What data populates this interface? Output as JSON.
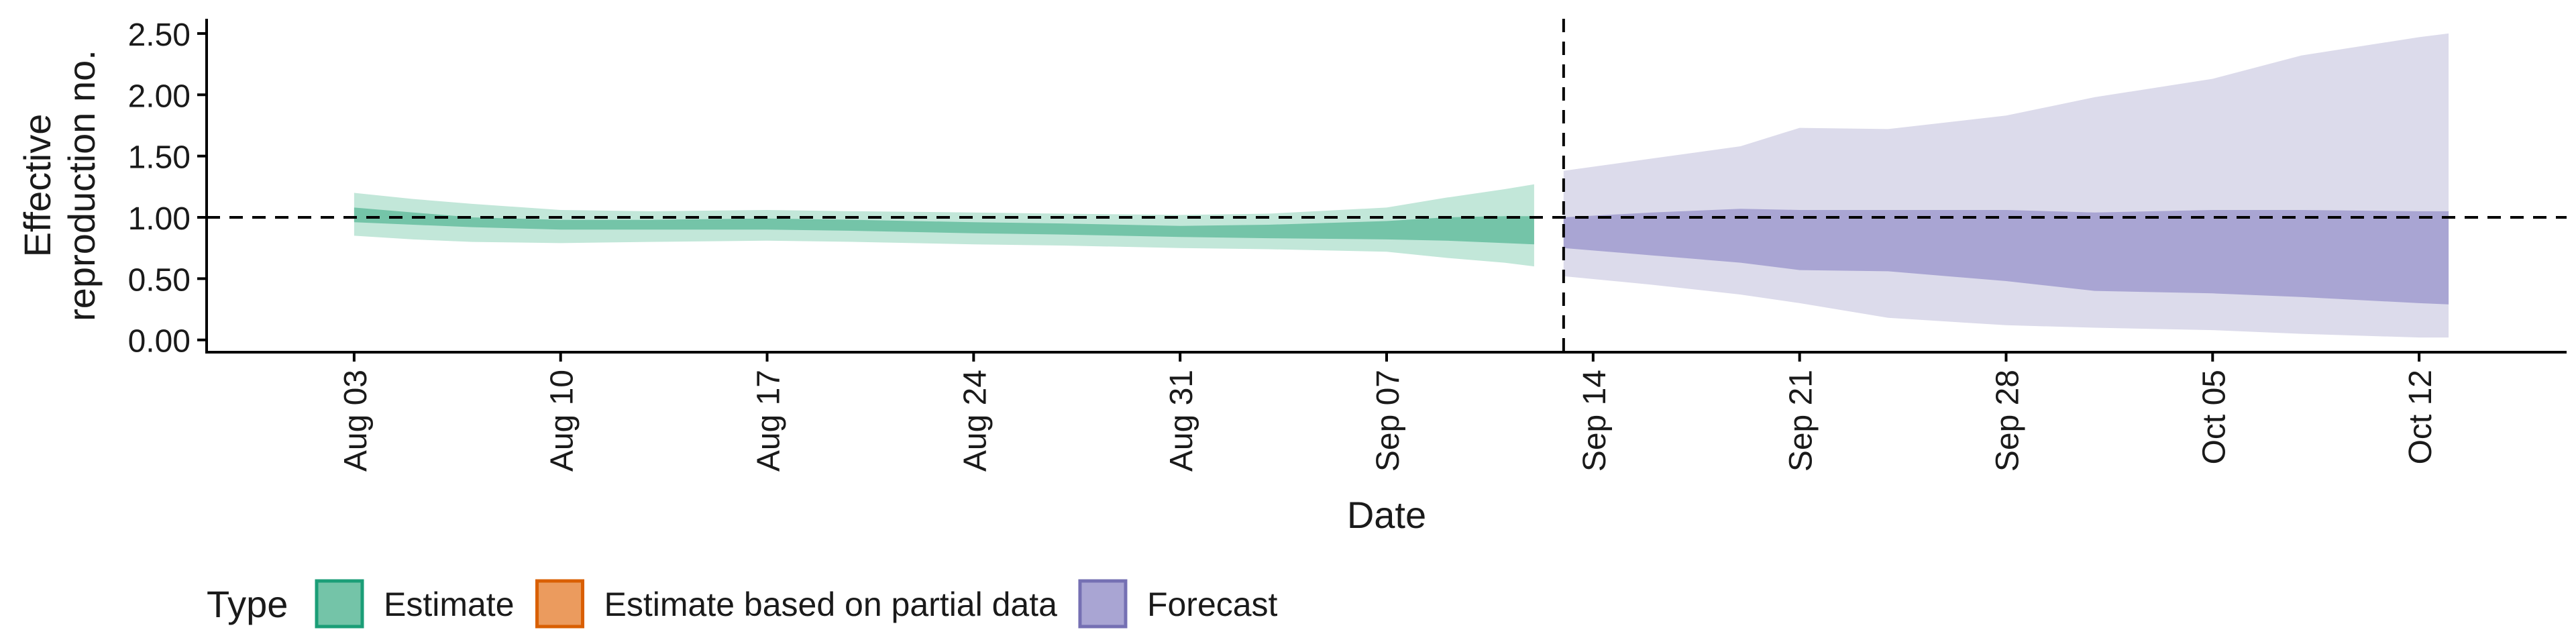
{
  "chart_data": {
    "type": "area",
    "title": "",
    "xlabel": "Date",
    "ylabel": "Effective\nreproduction no.",
    "x_axis": {
      "min": "2020-07-29",
      "max": "2020-10-17",
      "tick_dates": [
        "2020-08-03",
        "2020-08-10",
        "2020-08-17",
        "2020-08-24",
        "2020-08-31",
        "2020-09-07",
        "2020-09-14",
        "2020-09-21",
        "2020-09-28",
        "2020-10-05",
        "2020-10-12"
      ],
      "tick_labels": [
        "Aug 03",
        "Aug 10",
        "Aug 17",
        "Aug 24",
        "Aug 31",
        "Sep 07",
        "Sep 14",
        "Sep 21",
        "Sep 28",
        "Oct 05",
        "Oct 12"
      ]
    },
    "y_axis": {
      "min": -0.1,
      "max": 2.62,
      "ticks": [
        0,
        0.5,
        1,
        1.5,
        2,
        2.5
      ],
      "tick_labels": [
        "0.00",
        "0.50",
        "1.00",
        "1.50",
        "2.00",
        "2.50"
      ]
    },
    "reference_line_y": 1.0,
    "forecast_divider_date": "2020-09-13",
    "grid": false,
    "legend": {
      "title": "Type",
      "position": "bottom",
      "items": [
        {
          "label": "Estimate",
          "fill": "#74c4a8",
          "stroke": "#1b9e77"
        },
        {
          "label": "Estimate based on partial data",
          "fill": "#eb9b5e",
          "stroke": "#d95f02"
        },
        {
          "label": "Forecast",
          "fill": "#a9a5d3",
          "stroke": "#7570b3"
        }
      ]
    },
    "series": [
      {
        "name": "Estimate",
        "color_outer": "#c2e7d9",
        "color_inner": "#74c4a8",
        "points": [
          {
            "date": "2020-08-03",
            "lower90": 0.85,
            "upper90": 1.2,
            "lower50": 0.96,
            "upper50": 1.08
          },
          {
            "date": "2020-08-05",
            "lower90": 0.82,
            "upper90": 1.15,
            "lower50": 0.94,
            "upper50": 1.04
          },
          {
            "date": "2020-08-07",
            "lower90": 0.8,
            "upper90": 1.11,
            "lower50": 0.92,
            "upper50": 1.0
          },
          {
            "date": "2020-08-10",
            "lower90": 0.79,
            "upper90": 1.06,
            "lower50": 0.9,
            "upper50": 0.98
          },
          {
            "date": "2020-08-13",
            "lower90": 0.8,
            "upper90": 1.05,
            "lower50": 0.9,
            "upper50": 0.98
          },
          {
            "date": "2020-08-17",
            "lower90": 0.81,
            "upper90": 1.06,
            "lower50": 0.9,
            "upper50": 0.99
          },
          {
            "date": "2020-08-20",
            "lower90": 0.8,
            "upper90": 1.05,
            "lower50": 0.89,
            "upper50": 0.98
          },
          {
            "date": "2020-08-24",
            "lower90": 0.78,
            "upper90": 1.04,
            "lower50": 0.87,
            "upper50": 0.96
          },
          {
            "date": "2020-08-27",
            "lower90": 0.77,
            "upper90": 1.03,
            "lower50": 0.86,
            "upper50": 0.95
          },
          {
            "date": "2020-08-31",
            "lower90": 0.75,
            "upper90": 1.02,
            "lower50": 0.84,
            "upper50": 0.93
          },
          {
            "date": "2020-09-03",
            "lower90": 0.74,
            "upper90": 1.03,
            "lower50": 0.83,
            "upper50": 0.94
          },
          {
            "date": "2020-09-07",
            "lower90": 0.72,
            "upper90": 1.08,
            "lower50": 0.82,
            "upper50": 0.97
          },
          {
            "date": "2020-09-09",
            "lower90": 0.67,
            "upper90": 1.16,
            "lower50": 0.81,
            "upper50": 1.0
          },
          {
            "date": "2020-09-11",
            "lower90": 0.63,
            "upper90": 1.23,
            "lower50": 0.79,
            "upper50": 1.01
          },
          {
            "date": "2020-09-12",
            "lower90": 0.6,
            "upper90": 1.27,
            "lower50": 0.78,
            "upper50": 1.01
          }
        ]
      },
      {
        "name": "Forecast",
        "color_outer": "#dcdbeb",
        "color_inner": "#a9a5d3",
        "points": [
          {
            "date": "2020-09-13",
            "lower90": 0.52,
            "upper90": 1.38,
            "lower50": 0.75,
            "upper50": 1.0
          },
          {
            "date": "2020-09-16",
            "lower90": 0.45,
            "upper90": 1.48,
            "lower50": 0.69,
            "upper50": 1.04
          },
          {
            "date": "2020-09-19",
            "lower90": 0.37,
            "upper90": 1.58,
            "lower50": 0.63,
            "upper50": 1.07
          },
          {
            "date": "2020-09-21",
            "lower90": 0.3,
            "upper90": 1.73,
            "lower50": 0.57,
            "upper50": 1.06
          },
          {
            "date": "2020-09-24",
            "lower90": 0.18,
            "upper90": 1.72,
            "lower50": 0.56,
            "upper50": 1.06
          },
          {
            "date": "2020-09-28",
            "lower90": 0.12,
            "upper90": 1.83,
            "lower50": 0.48,
            "upper50": 1.06
          },
          {
            "date": "2020-10-01",
            "lower90": 0.1,
            "upper90": 1.98,
            "lower50": 0.4,
            "upper50": 1.04
          },
          {
            "date": "2020-10-05",
            "lower90": 0.08,
            "upper90": 2.13,
            "lower50": 0.38,
            "upper50": 1.06
          },
          {
            "date": "2020-10-08",
            "lower90": 0.05,
            "upper90": 2.32,
            "lower50": 0.35,
            "upper50": 1.06
          },
          {
            "date": "2020-10-12",
            "lower90": 0.02,
            "upper90": 2.47,
            "lower50": 0.3,
            "upper50": 1.05
          },
          {
            "date": "2020-10-13",
            "lower90": 0.02,
            "upper90": 2.5,
            "lower50": 0.29,
            "upper50": 1.05
          }
        ]
      }
    ]
  }
}
